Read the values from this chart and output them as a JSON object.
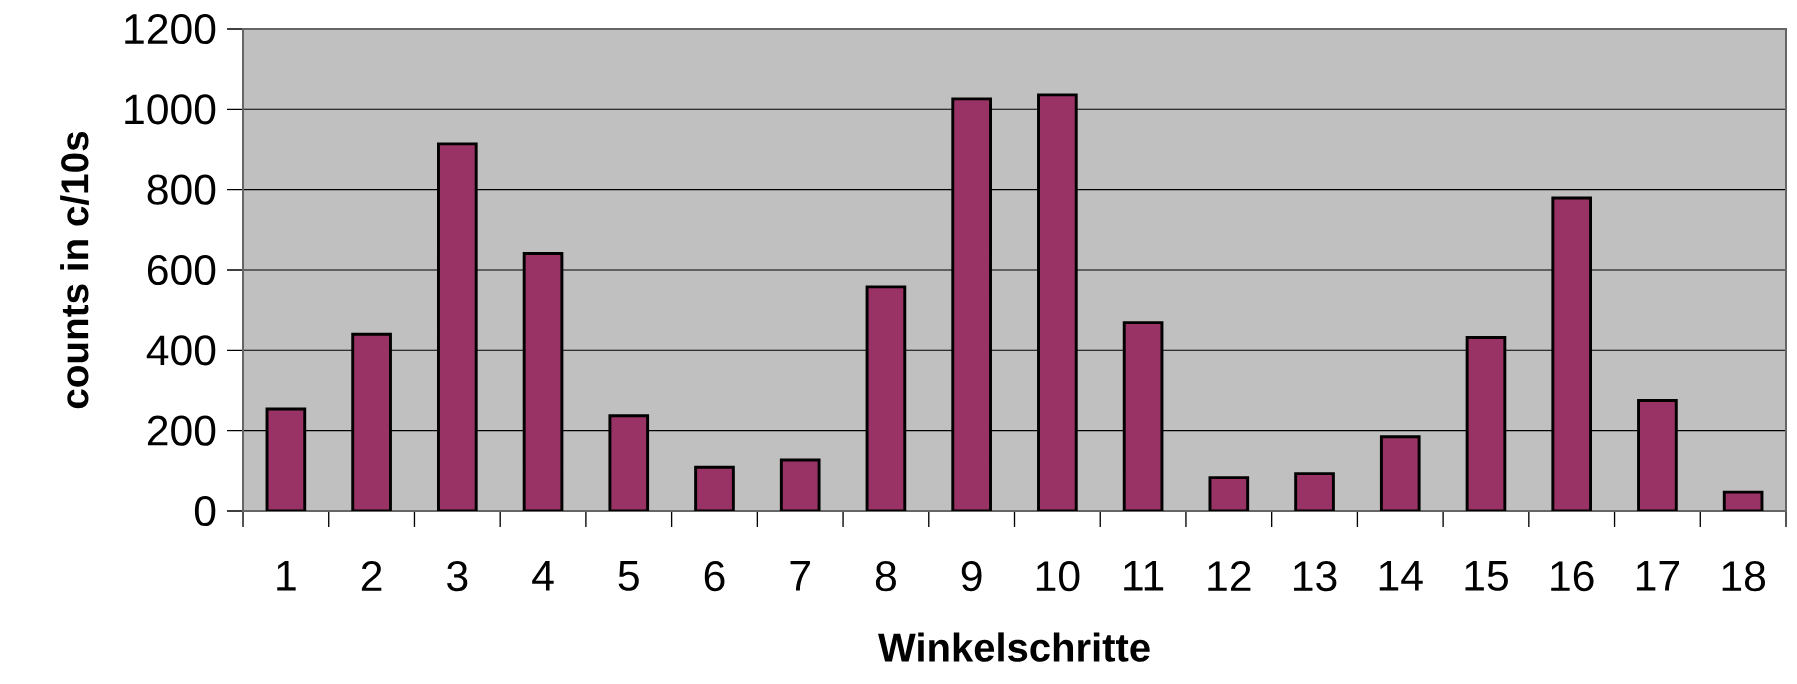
{
  "chart_data": {
    "type": "bar",
    "xlabel": "Winkelschritte",
    "ylabel": "counts in c/10s",
    "categories": [
      "1",
      "2",
      "3",
      "4",
      "5",
      "6",
      "7",
      "8",
      "9",
      "10",
      "11",
      "12",
      "13",
      "14",
      "15",
      "16",
      "17",
      "18"
    ],
    "values": [
      254,
      440,
      914,
      641,
      237,
      109,
      127,
      558,
      1026,
      1036,
      469,
      83,
      93,
      185,
      432,
      779,
      275,
      47
    ],
    "color": "#993366",
    "ylim": [
      0,
      1200
    ],
    "yticks": [
      0,
      200,
      400,
      600,
      800,
      1000,
      1200
    ],
    "grid": "y"
  }
}
